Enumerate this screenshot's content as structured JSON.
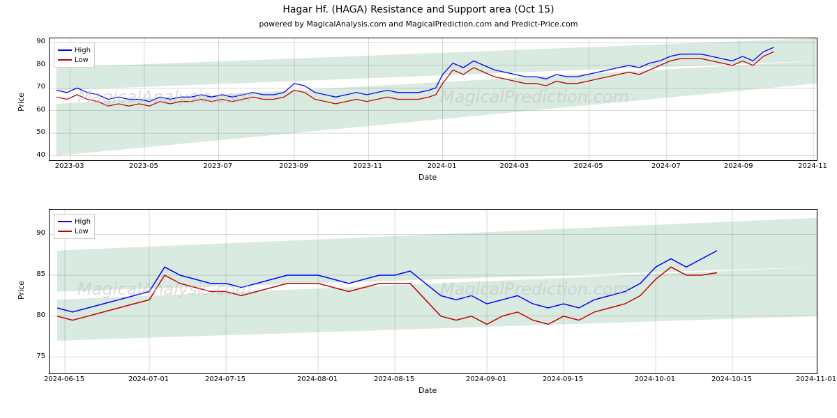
{
  "title": "Hagar Hf. (HAGA) Resistance and Support area (Oct 15)",
  "subtitle": "powered by MagicalAnalysis.com and MagicalPrediction.com and Predict-Price.com",
  "title_fontsize": 14,
  "subtitle_fontsize": 11,
  "background_color": "#ffffff",
  "watermark_texts": [
    "MagicalAnalysis.com",
    "MagicalPrediction.com"
  ],
  "watermark_color": "#bfbfbf",
  "watermark_fontsize": 24,
  "legend": {
    "items": [
      {
        "label": "High",
        "color": "#0000ff"
      },
      {
        "label": "Low",
        "color": "#c00000"
      }
    ],
    "border_color": "#cccccc",
    "background": "#ffffff",
    "fontsize": 10
  },
  "grid_color": "#b0b0b0",
  "axis_color": "#000000",
  "tick_fontsize": 10,
  "axis_label_fontsize": 11,
  "top_chart": {
    "type": "line",
    "xlabel": "Date",
    "ylabel": "Price",
    "xlim": [
      0,
      445
    ],
    "ylim": [
      38,
      92
    ],
    "yticks": [
      40,
      50,
      60,
      70,
      80,
      90
    ],
    "xticks": [
      {
        "pos": 12,
        "label": "2023-03"
      },
      {
        "pos": 55,
        "label": "2023-05"
      },
      {
        "pos": 98,
        "label": "2023-07"
      },
      {
        "pos": 142,
        "label": "2023-09"
      },
      {
        "pos": 185,
        "label": "2023-11"
      },
      {
        "pos": 228,
        "label": "2024-01"
      },
      {
        "pos": 270,
        "label": "2024-03"
      },
      {
        "pos": 313,
        "label": "2024-05"
      },
      {
        "pos": 358,
        "label": "2024-07"
      },
      {
        "pos": 400,
        "label": "2024-09"
      },
      {
        "pos": 443,
        "label": "2024-11"
      }
    ],
    "support_band": {
      "color": "#2e8b57",
      "x": [
        4,
        445
      ],
      "y_lower": [
        40,
        72
      ],
      "y_upper": [
        63,
        82
      ]
    },
    "resistance_band": {
      "color": "#2e8b57",
      "x": [
        4,
        445
      ],
      "y_lower": [
        69,
        82
      ],
      "y_upper": [
        79,
        92
      ]
    },
    "series_high": {
      "color": "#0000ff",
      "linewidth": 1.3,
      "x": [
        4,
        10,
        16,
        22,
        28,
        34,
        40,
        46,
        52,
        58,
        64,
        70,
        76,
        82,
        88,
        94,
        100,
        106,
        112,
        118,
        124,
        130,
        136,
        142,
        148,
        154,
        160,
        166,
        172,
        178,
        184,
        190,
        196,
        202,
        208,
        214,
        220,
        224,
        228,
        234,
        240,
        246,
        252,
        258,
        264,
        270,
        276,
        282,
        288,
        294,
        300,
        306,
        312,
        318,
        324,
        330,
        336,
        342,
        348,
        354,
        360,
        366,
        372,
        378,
        384,
        390,
        396,
        402,
        408,
        414,
        420
      ],
      "y": [
        69,
        68,
        70,
        68,
        67,
        65,
        66,
        65,
        65,
        64,
        66,
        65,
        66,
        66,
        67,
        66,
        67,
        66,
        67,
        68,
        67,
        67,
        68,
        72,
        71,
        68,
        67,
        66,
        67,
        68,
        67,
        68,
        69,
        68,
        68,
        68,
        69,
        70,
        76,
        81,
        79,
        82,
        80,
        78,
        77,
        76,
        75,
        75,
        74,
        76,
        75,
        75,
        76,
        77,
        78,
        79,
        80,
        79,
        81,
        82,
        84,
        85,
        85,
        85,
        84,
        83,
        82,
        84,
        82,
        86,
        88
      ]
    },
    "series_low": {
      "color": "#c00000",
      "linewidth": 1.3,
      "x": [
        4,
        10,
        16,
        22,
        28,
        34,
        40,
        46,
        52,
        58,
        64,
        70,
        76,
        82,
        88,
        94,
        100,
        106,
        112,
        118,
        124,
        130,
        136,
        142,
        148,
        154,
        160,
        166,
        172,
        178,
        184,
        190,
        196,
        202,
        208,
        214,
        220,
        224,
        228,
        234,
        240,
        246,
        252,
        258,
        264,
        270,
        276,
        282,
        288,
        294,
        300,
        306,
        312,
        318,
        324,
        330,
        336,
        342,
        348,
        354,
        360,
        366,
        372,
        378,
        384,
        390,
        396,
        402,
        408,
        414,
        420
      ],
      "y": [
        66,
        65,
        67,
        65,
        64,
        62,
        63,
        62,
        63,
        62,
        64,
        63,
        64,
        64,
        65,
        64,
        65,
        64,
        65,
        66,
        65,
        65,
        66,
        69,
        68,
        65,
        64,
        63,
        64,
        65,
        64,
        65,
        66,
        65,
        65,
        65,
        66,
        67,
        72,
        78,
        76,
        79,
        77,
        75,
        74,
        73,
        72,
        72,
        71,
        73,
        72,
        72,
        73,
        74,
        75,
        76,
        77,
        76,
        78,
        80,
        82,
        83,
        83,
        83,
        82,
        81,
        80,
        82,
        80,
        84,
        86
      ]
    }
  },
  "bottom_chart": {
    "type": "line",
    "xlabel": "Date",
    "ylabel": "Price",
    "xlim": [
      0,
      100
    ],
    "ylim": [
      73,
      93
    ],
    "yticks": [
      75,
      80,
      85,
      90
    ],
    "xticks": [
      {
        "pos": 2,
        "label": "2024-06-15"
      },
      {
        "pos": 13,
        "label": "2024-07-01"
      },
      {
        "pos": 23,
        "label": "2024-07-15"
      },
      {
        "pos": 35,
        "label": "2024-08-01"
      },
      {
        "pos": 45,
        "label": "2024-08-15"
      },
      {
        "pos": 57,
        "label": "2024-09-01"
      },
      {
        "pos": 67,
        "label": "2024-09-15"
      },
      {
        "pos": 79,
        "label": "2024-10-01"
      },
      {
        "pos": 89,
        "label": "2024-10-15"
      },
      {
        "pos": 100,
        "label": "2024-11-01"
      }
    ],
    "support_band": {
      "color": "#2e8b57",
      "x": [
        1,
        100
      ],
      "y_lower": [
        77,
        80
      ],
      "y_upper": [
        82,
        86
      ]
    },
    "resistance_band": {
      "color": "#2e8b57",
      "x": [
        1,
        100
      ],
      "y_lower": [
        83,
        86
      ],
      "y_upper": [
        88,
        92
      ]
    },
    "series_high": {
      "color": "#0000ff",
      "linewidth": 1.5,
      "x": [
        1,
        3,
        5,
        7,
        9,
        11,
        13,
        15,
        17,
        19,
        21,
        23,
        25,
        27,
        29,
        31,
        33,
        35,
        37,
        39,
        41,
        43,
        45,
        47,
        49,
        51,
        53,
        55,
        57,
        59,
        61,
        63,
        65,
        67,
        69,
        71,
        73,
        75,
        77,
        79,
        81,
        83,
        85,
        87
      ],
      "y": [
        81,
        80.5,
        81,
        81.5,
        82,
        82.5,
        83,
        86,
        85,
        84.5,
        84,
        84,
        83.5,
        84,
        84.5,
        85,
        85,
        85,
        84.5,
        84,
        84.5,
        85,
        85,
        85.5,
        84,
        82.5,
        82,
        82.5,
        81.5,
        82,
        82.5,
        81.5,
        81,
        81.5,
        81,
        82,
        82.5,
        83,
        84,
        86,
        87,
        86,
        87,
        88
      ]
    },
    "series_low": {
      "color": "#c00000",
      "linewidth": 1.5,
      "x": [
        1,
        3,
        5,
        7,
        9,
        11,
        13,
        15,
        17,
        19,
        21,
        23,
        25,
        27,
        29,
        31,
        33,
        35,
        37,
        39,
        41,
        43,
        45,
        47,
        49,
        51,
        53,
        55,
        57,
        59,
        61,
        63,
        65,
        67,
        69,
        71,
        73,
        75,
        77,
        79,
        81,
        83,
        85,
        87
      ],
      "y": [
        80,
        79.5,
        80,
        80.5,
        81,
        81.5,
        82,
        85,
        84,
        83.5,
        83,
        83,
        82.5,
        83,
        83.5,
        84,
        84,
        84,
        83.5,
        83,
        83.5,
        84,
        84,
        84,
        82,
        80,
        79.5,
        80,
        79,
        80,
        80.5,
        79.5,
        79,
        80,
        79.5,
        80.5,
        81,
        81.5,
        82.5,
        84.5,
        86,
        85,
        85,
        85.3
      ]
    }
  }
}
